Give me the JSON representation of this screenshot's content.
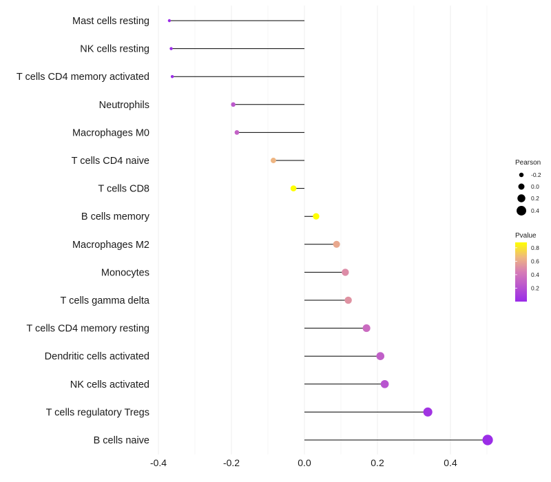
{
  "chart_data": {
    "type": "lollipop",
    "title": "",
    "xlabel": "",
    "ylabel": "",
    "xlim": [
      -0.42,
      0.53
    ],
    "x_ticks": [
      "-0.4",
      "-0.2",
      "0.0",
      "0.2",
      "0.4"
    ],
    "x_tick_values": [
      -0.4,
      -0.2,
      0.0,
      0.2,
      0.4
    ],
    "categories": [
      "Mast cells resting",
      "NK cells resting",
      "T cells CD4 memory activated",
      "Neutrophils",
      "Macrophages M0",
      "T cells CD4 naive",
      "T cells CD8",
      "B cells memory",
      "Macrophages M2",
      "Monocytes",
      "T cells gamma delta",
      "T cells CD4 memory resting",
      "Dendritic cells activated",
      "NK cells activated",
      "T cells regulatory  Tregs ",
      "B cells naive"
    ],
    "pearson": [
      -0.37,
      -0.365,
      -0.362,
      -0.195,
      -0.185,
      -0.085,
      -0.03,
      0.032,
      0.088,
      0.112,
      0.12,
      0.17,
      0.208,
      0.22,
      0.338,
      0.502
    ],
    "pvalue": [
      0.01,
      0.01,
      0.01,
      0.25,
      0.3,
      0.65,
      0.88,
      0.88,
      0.6,
      0.5,
      0.52,
      0.35,
      0.28,
      0.22,
      0.05,
      0.01
    ],
    "legend": {
      "size_title": "Pearson",
      "size_labels": [
        "-0.2",
        "0.0",
        "0.2",
        "0.4"
      ],
      "size_values": [
        -0.2,
        0.0,
        0.2,
        0.4
      ],
      "color_title": "Pvalue",
      "color_labels": [
        "0.8",
        "0.6",
        "0.4",
        "0.2"
      ],
      "color_values": [
        0.8,
        0.6,
        0.4,
        0.2
      ],
      "color_range": [
        0.0,
        0.88
      ],
      "placement": "right"
    },
    "colors": {
      "low": "#9a2be8",
      "mid": "#d67cb6",
      "high": "#ffff00",
      "stem": "#000000",
      "grid": "#ececec"
    }
  }
}
